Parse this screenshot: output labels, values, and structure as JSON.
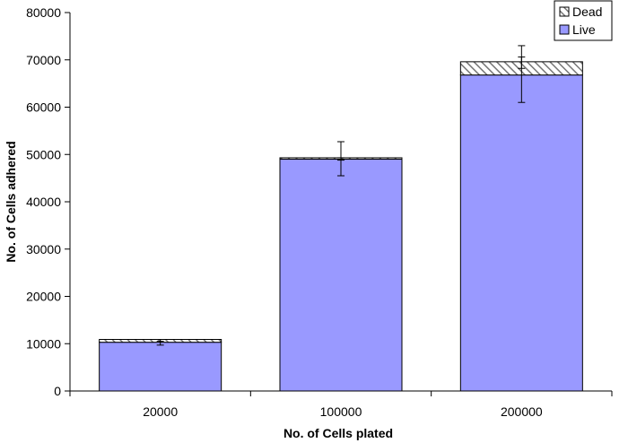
{
  "chart_data": {
    "type": "bar",
    "stacked": true,
    "title": "",
    "xlabel": "No. of Cells plated",
    "ylabel": "No. of Cells adhered",
    "categories": [
      "20000",
      "100000",
      "200000"
    ],
    "ylim": [
      0,
      80000
    ],
    "yticks": [
      0,
      10000,
      20000,
      30000,
      40000,
      50000,
      60000,
      70000,
      80000
    ],
    "series": [
      {
        "name": "Live",
        "values": [
          10300,
          49000,
          66800
        ],
        "error": [
          [
            9700,
            10900
          ],
          [
            45500,
            49300
          ],
          [
            61000,
            70600
          ]
        ],
        "color": "#9999ff"
      },
      {
        "name": "Dead",
        "values": [
          600,
          300,
          2800
        ],
        "error": [
          [
            10500,
            10900
          ],
          [
            48800,
            52700
          ],
          [
            68200,
            73000
          ]
        ],
        "color": "#ffffff",
        "pattern": "diagonal-hatch"
      }
    ],
    "legend": {
      "position": "top-right",
      "order": [
        "Dead",
        "Live"
      ]
    },
    "grid": false
  }
}
